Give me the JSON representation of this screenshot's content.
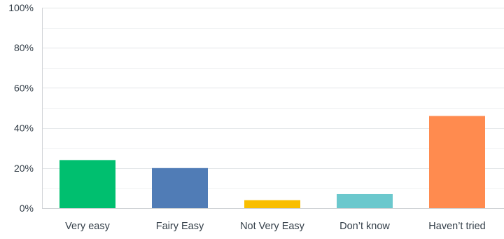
{
  "chart_data": {
    "type": "bar",
    "categories": [
      "Very easy",
      "Fairy Easy",
      "Not Very Easy",
      "Don’t know",
      "Haven’t tried"
    ],
    "values": [
      24,
      20,
      4,
      7,
      46
    ],
    "colors": [
      "#00bf6f",
      "#507cb6",
      "#f9be00",
      "#6bc8cd",
      "#ff8b4f"
    ],
    "yticks": [
      "0%",
      "20%",
      "40%",
      "60%",
      "80%",
      "100%"
    ],
    "ylim": [
      0,
      100
    ],
    "grid": true,
    "legend": "none"
  }
}
